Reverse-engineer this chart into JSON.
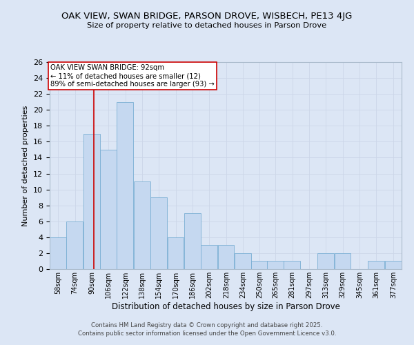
{
  "title": "OAK VIEW, SWAN BRIDGE, PARSON DROVE, WISBECH, PE13 4JG",
  "subtitle": "Size of property relative to detached houses in Parson Drove",
  "xlabel": "Distribution of detached houses by size in Parson Drove",
  "ylabel": "Number of detached properties",
  "bar_color": "#c5d8f0",
  "bar_edge_color": "#7aafd4",
  "categories": [
    "58sqm",
    "74sqm",
    "90sqm",
    "106sqm",
    "122sqm",
    "138sqm",
    "154sqm",
    "170sqm",
    "186sqm",
    "202sqm",
    "218sqm",
    "234sqm",
    "250sqm",
    "265sqm",
    "281sqm",
    "297sqm",
    "313sqm",
    "329sqm",
    "345sqm",
    "361sqm",
    "377sqm"
  ],
  "values": [
    4,
    6,
    17,
    15,
    21,
    11,
    9,
    4,
    7,
    3,
    3,
    2,
    1,
    1,
    1,
    0,
    2,
    2,
    0,
    1,
    1
  ],
  "bin_width": 16,
  "bin_starts": [
    50,
    66,
    82,
    98,
    114,
    130,
    146,
    162,
    178,
    194,
    210,
    226,
    242,
    257,
    273,
    289,
    305,
    321,
    337,
    353,
    369
  ],
  "xlim": [
    50,
    385
  ],
  "property_size": 92,
  "red_line_color": "#cc0000",
  "annotation_line1": "OAK VIEW SWAN BRIDGE: 92sqm",
  "annotation_line2": "← 11% of detached houses are smaller (12)",
  "annotation_line3": "89% of semi-detached houses are larger (93) →",
  "ylim": [
    0,
    26
  ],
  "yticks": [
    0,
    2,
    4,
    6,
    8,
    10,
    12,
    14,
    16,
    18,
    20,
    22,
    24,
    26
  ],
  "grid_color": "#ccd6e8",
  "background_color": "#dce6f5",
  "fig_background": "#dce6f5",
  "footer_line1": "Contains HM Land Registry data © Crown copyright and database right 2025.",
  "footer_line2": "Contains public sector information licensed under the Open Government Licence v3.0."
}
